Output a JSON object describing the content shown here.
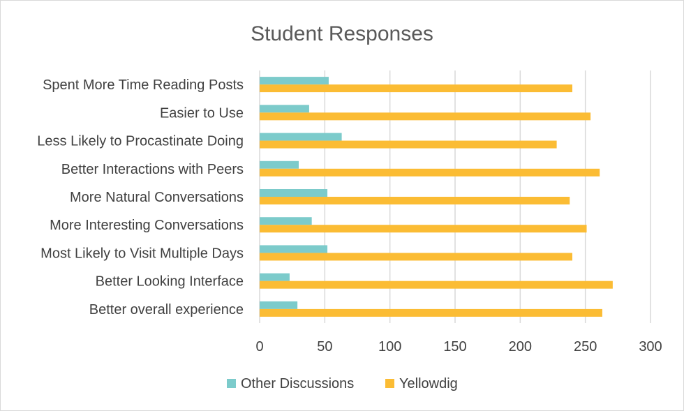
{
  "chart_data": {
    "type": "bar",
    "orientation": "horizontal",
    "title": "Student Responses",
    "categories": [
      "Spent More Time Reading Posts",
      "Easier to Use",
      "Less Likely to Procastinate Doing",
      "Better Interactions with Peers",
      "More Natural Conversations",
      "More Interesting Conversations",
      "Most Likely to Visit Multiple Days",
      "Better Looking Interface",
      "Better overall experience"
    ],
    "series": [
      {
        "name": "Other Discussions",
        "color": "#7ccbcb",
        "values": [
          53,
          38,
          63,
          30,
          52,
          40,
          52,
          23,
          29
        ]
      },
      {
        "name": "Yellowdig",
        "color": "#fbbc34",
        "values": [
          240,
          254,
          228,
          261,
          238,
          251,
          240,
          271,
          263
        ]
      }
    ],
    "xlim": [
      0,
      300
    ],
    "xticks": [
      0,
      50,
      100,
      150,
      200,
      250,
      300
    ],
    "grid": true,
    "legend_position": "bottom",
    "gridline_color": "#d9d9d9"
  }
}
